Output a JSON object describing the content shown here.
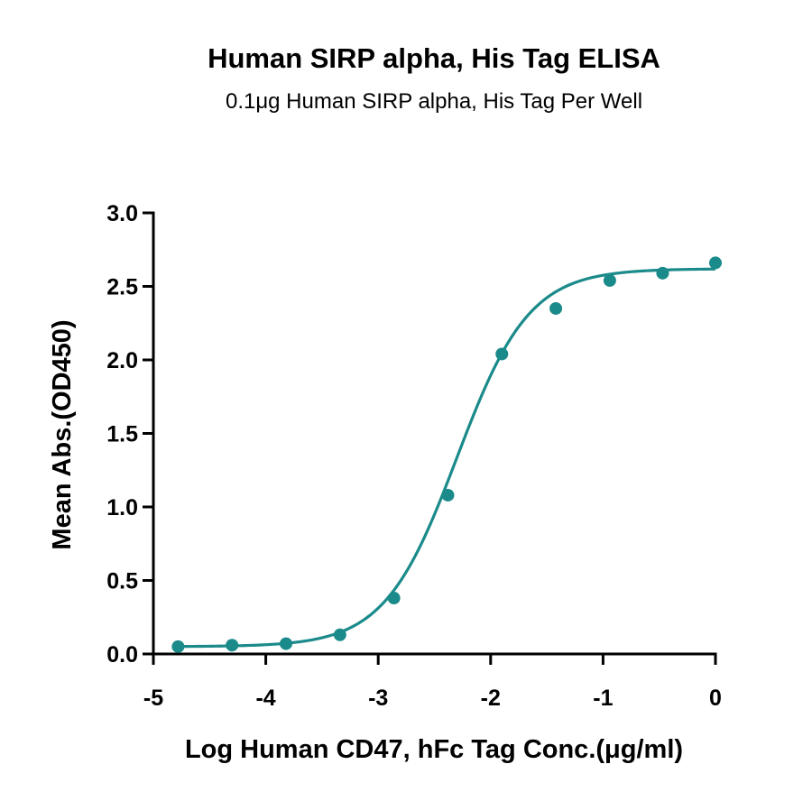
{
  "chart_data": {
    "type": "scatter",
    "title": "Human SIRP alpha, His Tag ELISA",
    "subtitle": "0.1μg Human SIRP alpha, His Tag Per Well",
    "xlabel": "Log Human CD47, hFc Tag Conc.(μg/ml)",
    "ylabel": "Mean Abs.(OD450)",
    "xlim": [
      -5,
      0
    ],
    "ylim": [
      0,
      3
    ],
    "x_ticks": [
      "-5",
      "-4",
      "-3",
      "-2",
      "-1",
      "0"
    ],
    "y_ticks": [
      "0.0",
      "0.5",
      "1.0",
      "1.5",
      "2.0",
      "2.5",
      "3.0"
    ],
    "grid": false,
    "legend": "none",
    "color": "#1b8a8a",
    "series": [
      {
        "points": [
          {
            "x": -4.78,
            "y": 0.05
          },
          {
            "x": -4.3,
            "y": 0.06
          },
          {
            "x": -3.82,
            "y": 0.07
          },
          {
            "x": -3.34,
            "y": 0.13
          },
          {
            "x": -2.86,
            "y": 0.38
          },
          {
            "x": -2.38,
            "y": 1.08
          },
          {
            "x": -1.9,
            "y": 2.04
          },
          {
            "x": -1.42,
            "y": 2.35
          },
          {
            "x": -0.94,
            "y": 2.54
          },
          {
            "x": -0.47,
            "y": 2.59
          },
          {
            "x": 0.0,
            "y": 2.66
          }
        ],
        "fit": {
          "model": "4PL",
          "bottom": 0.05,
          "top": 2.62,
          "log_ec50": -2.3,
          "hill": 1.35,
          "x_range": [
            -4.78,
            0.0
          ]
        }
      }
    ]
  }
}
